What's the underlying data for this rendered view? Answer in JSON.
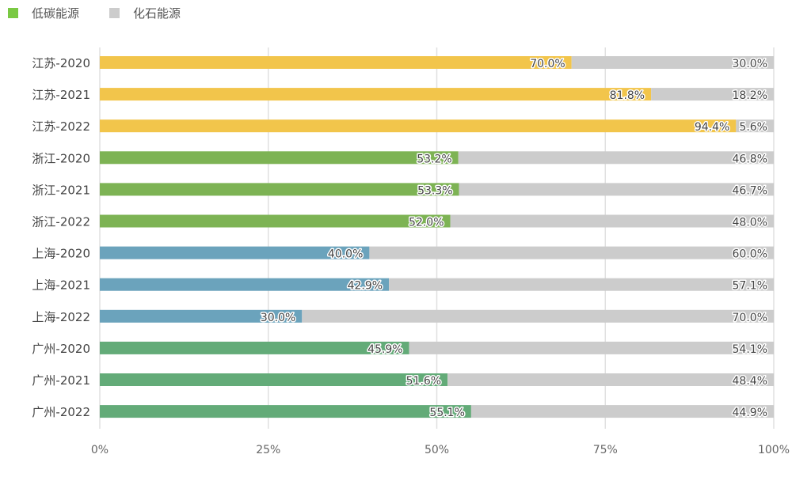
{
  "chart_data": {
    "type": "bar",
    "orientation": "horizontal",
    "stacked": true,
    "normalized": true,
    "title": "",
    "xlabel": "",
    "ylabel": "",
    "xlim": [
      0,
      100
    ],
    "grid": true,
    "legend_position": "top-left",
    "legend": [
      {
        "name": "低碳能源",
        "color": "#7ac943"
      },
      {
        "name": "化石能源",
        "color": "#cccccc"
      }
    ],
    "x_ticks": [
      "0%",
      "25%",
      "50%",
      "75%",
      "100%"
    ],
    "x_tick_values": [
      0,
      25,
      50,
      75,
      100
    ],
    "categories": [
      "江苏-2020",
      "江苏-2021",
      "江苏-2022",
      "浙江-2020",
      "浙江-2021",
      "浙江-2022",
      "上海-2020",
      "上海-2021",
      "上海-2022",
      "广州-2020",
      "广州-2021",
      "广州-2022"
    ],
    "category_colors": [
      "#f2c54b",
      "#f2c54b",
      "#f2c54b",
      "#7db354",
      "#7db354",
      "#7db354",
      "#6ba3bc",
      "#6ba3bc",
      "#6ba3bc",
      "#63ab78",
      "#63ab78",
      "#63ab78"
    ],
    "series": [
      {
        "name": "低碳能源",
        "values": [
          70.0,
          81.8,
          94.4,
          53.2,
          53.3,
          52.0,
          40.0,
          42.9,
          30.0,
          45.9,
          51.6,
          55.1
        ],
        "labels": [
          "70.0%",
          "81.8%",
          "94.4%",
          "53.2%",
          "53.3%",
          "52.0%",
          "40.0%",
          "42.9%",
          "30.0%",
          "45.9%",
          "51.6%",
          "55.1%"
        ]
      },
      {
        "name": "化石能源",
        "color": "#cccccc",
        "values": [
          30.0,
          18.2,
          5.6,
          46.8,
          46.7,
          48.0,
          60.0,
          57.1,
          70.0,
          54.1,
          48.4,
          44.9
        ],
        "labels": [
          "30.0%",
          "18.2%",
          "5.6%",
          "46.8%",
          "46.7%",
          "48.0%",
          "60.0%",
          "57.1%",
          "70.0%",
          "54.1%",
          "48.4%",
          "44.9%"
        ]
      }
    ]
  }
}
